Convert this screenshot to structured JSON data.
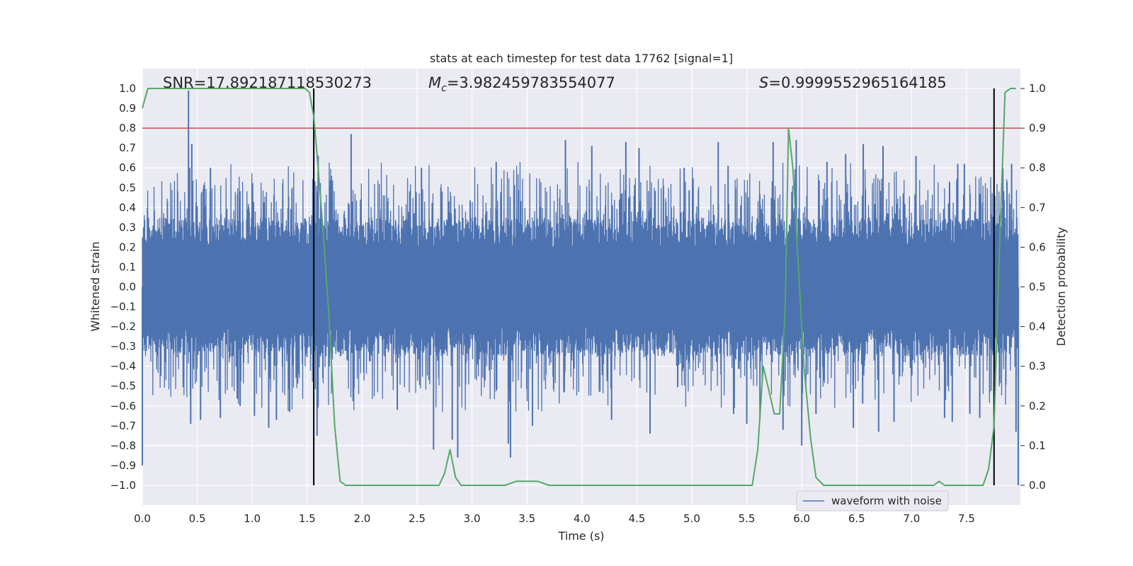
{
  "chart_data": {
    "type": "line",
    "title": "stats at each timestep for test data 17762 [signal=1]",
    "xlabel": "Time (s)",
    "ylabel": "Whitened strain",
    "y2label": "Detection probability",
    "xlim": [
      0.0,
      7.99
    ],
    "ylim": [
      -1.1,
      1.1
    ],
    "y2lim": [
      -0.05,
      1.05
    ],
    "grid": true,
    "x_ticks": [
      0.0,
      0.5,
      1.0,
      1.5,
      2.0,
      2.5,
      3.0,
      3.5,
      4.0,
      4.5,
      5.0,
      5.5,
      6.0,
      6.5,
      7.0,
      7.5
    ],
    "x_tick_labels": [
      "0.0",
      "0.5",
      "1.0",
      "1.5",
      "2.0",
      "2.5",
      "3.0",
      "3.5",
      "4.0",
      "4.5",
      "5.0",
      "5.5",
      "6.0",
      "6.5",
      "7.0",
      "7.5"
    ],
    "y_ticks": [
      1.0,
      0.9,
      0.8,
      0.7,
      0.6,
      0.5,
      0.4,
      0.3,
      0.2,
      0.1,
      0.0,
      -0.1,
      -0.2,
      -0.3,
      -0.4,
      -0.5,
      -0.6,
      -0.7,
      -0.8,
      -0.9,
      -1.0
    ],
    "y_tick_labels": [
      "1.0",
      "0.9",
      "0.8",
      "0.7",
      "0.6",
      "0.5",
      "0.4",
      "0.3",
      "0.2",
      "0.1",
      "0.0",
      "−0.1",
      "−0.2",
      "−0.3",
      "−0.4",
      "−0.5",
      "−0.6",
      "−0.7",
      "−0.8",
      "−0.9",
      "−1.0"
    ],
    "y2_ticks": [
      1.0,
      0.9,
      0.8,
      0.7,
      0.6,
      0.5,
      0.4,
      0.3,
      0.2,
      0.1,
      0.0
    ],
    "y2_tick_labels": [
      "1.0",
      "0.9",
      "0.8",
      "0.7",
      "0.6",
      "0.5",
      "0.4",
      "0.3",
      "0.2",
      "0.1",
      "0.0"
    ],
    "annotations": {
      "snr": "SNR=17.892187118530273",
      "mc_symbol": "M",
      "mc_subscript": "c",
      "mc_value": "=3.982459783554077",
      "s_symbol": "S",
      "s_value": "=0.9999552965164185"
    },
    "threshold": {
      "value": 0.9,
      "axis": "y2",
      "color": "#c44e52"
    },
    "vertical_lines": [
      1.56,
      7.75
    ],
    "series": [
      {
        "name": "waveform with noise",
        "axis": "y",
        "color": "#4c72b0",
        "kind": "noisy-waveform",
        "band_core": 0.2,
        "typical_peak": 0.55,
        "spikes": [
          [
            0.0,
            -0.9
          ],
          [
            0.42,
            0.99
          ],
          [
            0.45,
            0.72
          ],
          [
            0.43,
            0.6
          ],
          [
            0.44,
            -0.69
          ],
          [
            0.53,
            -0.67
          ],
          [
            0.62,
            0.6
          ],
          [
            0.71,
            -0.66
          ],
          [
            0.89,
            -0.6
          ],
          [
            1.02,
            -0.65
          ],
          [
            1.15,
            -0.71
          ],
          [
            1.22,
            -0.67
          ],
          [
            1.34,
            -0.63
          ],
          [
            1.6,
            0.66
          ],
          [
            1.59,
            -0.75
          ],
          [
            1.9,
            0.77
          ],
          [
            2.32,
            -0.62
          ],
          [
            2.54,
            0.6
          ],
          [
            2.65,
            -0.82
          ],
          [
            2.82,
            -0.77
          ],
          [
            2.87,
            -0.86
          ],
          [
            3.22,
            0.63
          ],
          [
            3.35,
            -0.86
          ],
          [
            3.33,
            -0.79
          ],
          [
            3.55,
            -0.7
          ],
          [
            3.85,
            0.74
          ],
          [
            4.09,
            0.71
          ],
          [
            4.27,
            -0.67
          ],
          [
            4.4,
            0.73
          ],
          [
            4.52,
            0.7
          ],
          [
            4.62,
            -0.74
          ],
          [
            4.93,
            0.6
          ],
          [
            5.24,
            0.73
          ],
          [
            5.33,
            0.61
          ],
          [
            5.38,
            -0.64
          ],
          [
            5.5,
            -0.69
          ],
          [
            5.62,
            -0.66
          ],
          [
            5.74,
            0.73
          ],
          [
            5.83,
            -0.72
          ],
          [
            5.95,
            0.74
          ],
          [
            6.0,
            -0.8
          ],
          [
            6.13,
            -0.64
          ],
          [
            6.23,
            0.63
          ],
          [
            6.4,
            0.67
          ],
          [
            6.47,
            -0.71
          ],
          [
            6.56,
            0.72
          ],
          [
            6.7,
            -0.73
          ],
          [
            6.74,
            0.71
          ],
          [
            6.84,
            -0.68
          ],
          [
            7.04,
            0.66
          ],
          [
            7.3,
            -0.66
          ],
          [
            7.37,
            -0.68
          ],
          [
            7.42,
            0.62
          ],
          [
            7.48,
            0.62
          ],
          [
            7.53,
            -0.64
          ],
          [
            7.62,
            -0.66
          ],
          [
            7.83,
            0.6
          ],
          [
            7.91,
            0.62
          ],
          [
            7.95,
            -0.73
          ],
          [
            7.97,
            -1.0
          ]
        ]
      },
      {
        "name": "detection probability",
        "axis": "y2",
        "color": "#55a868",
        "x": [
          0.0,
          0.05,
          0.1,
          0.2,
          0.3,
          0.4,
          0.5,
          0.6,
          0.7,
          0.8,
          0.9,
          1.0,
          1.1,
          1.2,
          1.3,
          1.4,
          1.48,
          1.52,
          1.56,
          1.6,
          1.65,
          1.7,
          1.75,
          1.8,
          1.85,
          1.9,
          2.0,
          2.1,
          2.2,
          2.3,
          2.4,
          2.5,
          2.6,
          2.7,
          2.75,
          2.8,
          2.85,
          2.9,
          2.95,
          3.0,
          3.05,
          3.1,
          3.2,
          3.3,
          3.4,
          3.5,
          3.6,
          3.7,
          3.8,
          3.9,
          4.0,
          4.2,
          4.4,
          4.6,
          4.8,
          5.0,
          5.2,
          5.4,
          5.45,
          5.5,
          5.55,
          5.6,
          5.65,
          5.7,
          5.75,
          5.8,
          5.85,
          5.88,
          5.92,
          5.97,
          6.02,
          6.08,
          6.13,
          6.2,
          6.3,
          6.4,
          6.5,
          6.6,
          6.8,
          7.0,
          7.1,
          7.2,
          7.25,
          7.3,
          7.4,
          7.5,
          7.55,
          7.6,
          7.65,
          7.7,
          7.75,
          7.8,
          7.85,
          7.9,
          7.95
        ],
        "values": [
          0.95,
          1.0,
          1.0,
          1.0,
          1.0,
          1.0,
          1.0,
          1.0,
          1.0,
          1.0,
          1.0,
          1.0,
          1.0,
          1.0,
          1.0,
          1.0,
          1.0,
          0.99,
          0.93,
          0.8,
          0.62,
          0.42,
          0.15,
          0.01,
          0.0,
          0.0,
          0.0,
          0.0,
          0.0,
          0.0,
          0.0,
          0.0,
          0.0,
          0.0,
          0.03,
          0.09,
          0.02,
          0.0,
          0.0,
          0.0,
          0.0,
          0.0,
          0.0,
          0.0,
          0.01,
          0.01,
          0.01,
          0.0,
          0.0,
          0.0,
          0.0,
          0.0,
          0.0,
          0.0,
          0.0,
          0.0,
          0.0,
          0.0,
          0.0,
          0.0,
          0.0,
          0.09,
          0.3,
          0.24,
          0.18,
          0.18,
          0.45,
          0.9,
          0.8,
          0.55,
          0.3,
          0.12,
          0.02,
          0.0,
          0.0,
          0.0,
          0.0,
          0.0,
          0.0,
          0.0,
          0.0,
          0.0,
          0.01,
          0.0,
          0.0,
          0.0,
          0.0,
          0.0,
          0.0,
          0.04,
          0.15,
          0.6,
          0.99,
          1.0,
          1.0
        ]
      }
    ],
    "legend": {
      "labels": [
        "waveform with noise"
      ],
      "placement": "lower-right"
    }
  }
}
